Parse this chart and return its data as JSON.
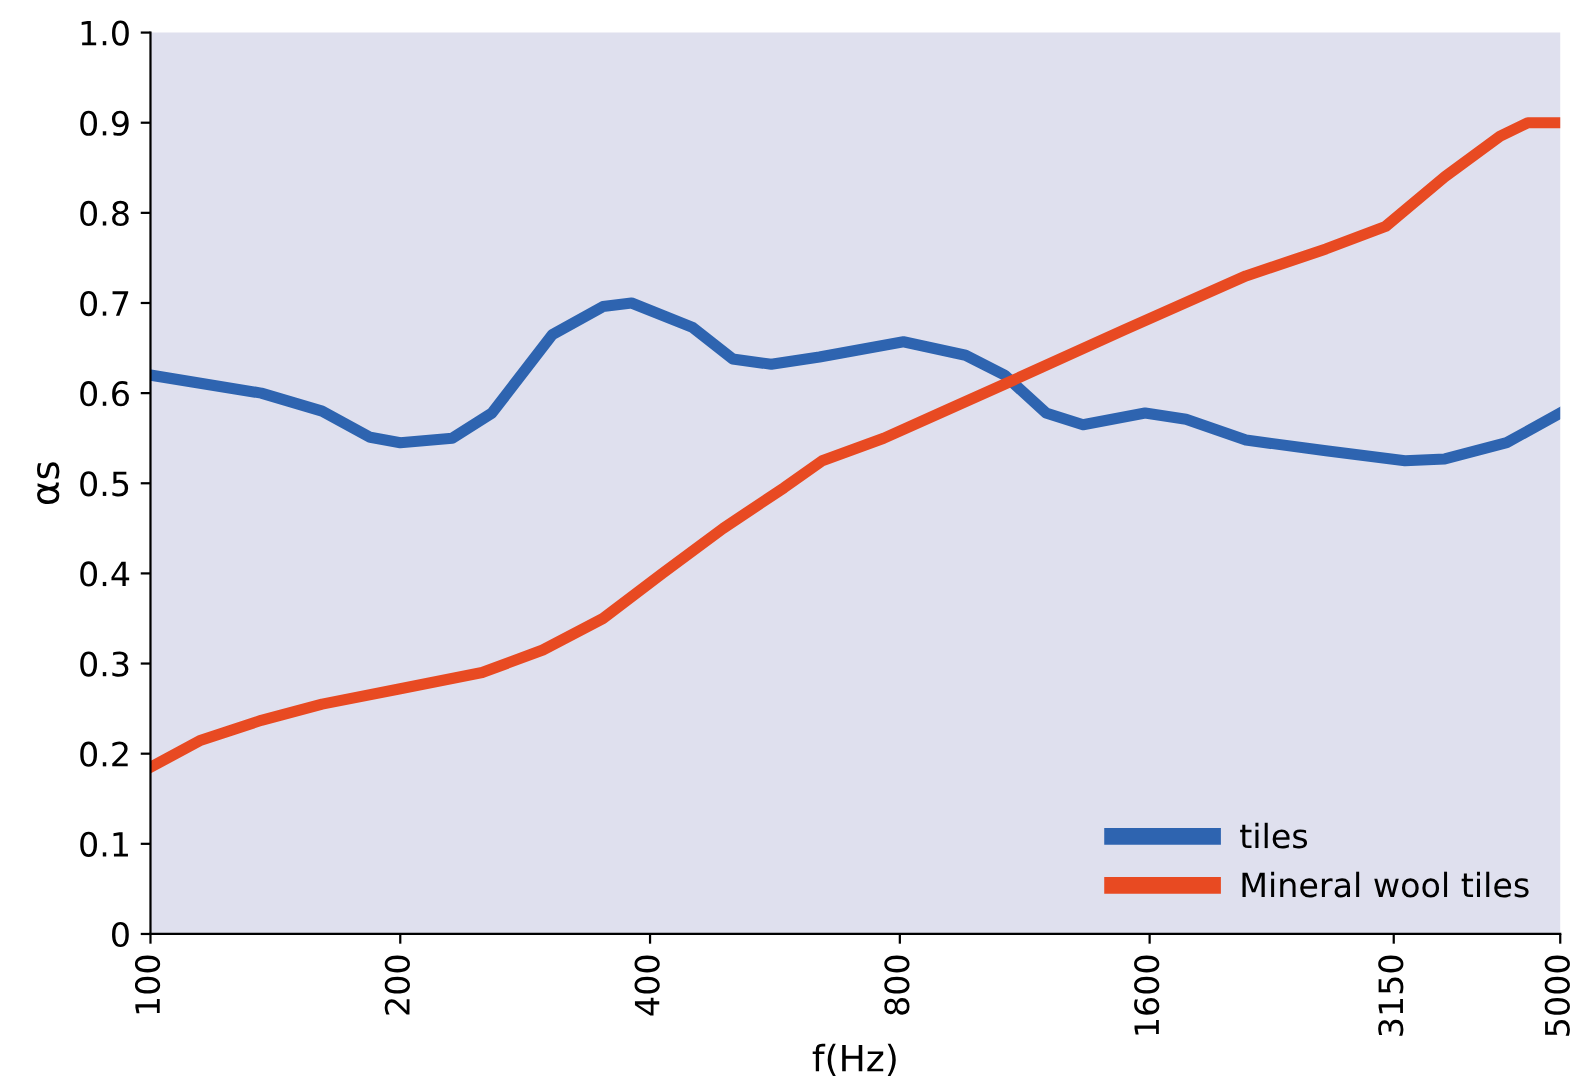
{
  "chart_data": {
    "type": "line",
    "xlabel": "f(Hz)",
    "ylabel": "αs",
    "log": "x",
    "xlim": [
      100,
      5000
    ],
    "xticks": [
      100,
      200,
      400,
      800,
      1600,
      3150,
      5000
    ],
    "ylim": [
      0,
      1.0
    ],
    "yticks": [
      0,
      0.1,
      0.2,
      0.3,
      0.4,
      0.5,
      0.6,
      0.7,
      0.8,
      0.9,
      {
        "value": 1.0,
        "label": "1.0"
      }
    ],
    "grid": false,
    "legend": "bottom right",
    "marker": "none",
    "line_style": "solid",
    "series": [
      {
        "name": "tiles",
        "color": "#2e64b0",
        "x": [
          100,
          136,
          161,
          184,
          200,
          231,
          258,
          305,
          351,
          380,
          450,
          503,
          560,
          640,
          808,
          960,
          1070,
          1200,
          1330,
          1580,
          1770,
          2090,
          2610,
          3250,
          3630,
          4310,
          5000
        ],
        "values": [
          0.62,
          0.6,
          0.58,
          0.551,
          0.545,
          0.55,
          0.578,
          0.665,
          0.696,
          0.7,
          0.673,
          0.638,
          0.632,
          0.64,
          0.657,
          0.642,
          0.62,
          0.578,
          0.565,
          0.578,
          0.571,
          0.548,
          0.536,
          0.525,
          0.527,
          0.545,
          0.578
        ]
      },
      {
        "name": "Mineral wool tiles",
        "color": "#e84a22",
        "x": [
          100,
          115,
          136,
          161,
          200,
          251,
          297,
          351,
          414,
          490,
          580,
          645,
          765,
          905,
          1070,
          1490,
          2090,
          2610,
          3080,
          3630,
          4230,
          4570,
          5000
        ],
        "values": [
          0.185,
          0.215,
          0.237,
          0.255,
          0.272,
          0.29,
          0.315,
          0.35,
          0.4,
          0.45,
          0.495,
          0.525,
          0.55,
          0.58,
          0.61,
          0.67,
          0.73,
          0.76,
          0.785,
          0.84,
          0.885,
          0.9,
          0.9
        ]
      }
    ]
  }
}
